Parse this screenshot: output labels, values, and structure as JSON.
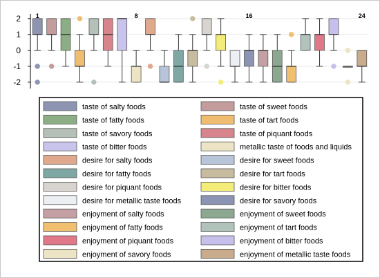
{
  "chart_data": {
    "type": "boxplot",
    "ylim": [
      -2.4,
      2.3
    ],
    "yticks": [
      2,
      1,
      0,
      -1,
      -2
    ],
    "grid": true,
    "legend_placement": "bottom",
    "annotations": [
      {
        "text": "1",
        "x": 1
      },
      {
        "text": "8",
        "x": 8
      },
      {
        "text": "16",
        "x": 16
      },
      {
        "text": "24",
        "x": 24
      }
    ],
    "series": [
      {
        "name": "taste of salty foods",
        "color": "#8d95b3",
        "q1": 1,
        "median": 1,
        "q3": 2,
        "whisker_low": 0,
        "whisker_high": 2,
        "outliers": [
          -1,
          -2
        ]
      },
      {
        "name": "taste of sweet foods",
        "color": "#c49c9c",
        "q1": 1,
        "median": 1,
        "q3": 2,
        "whisker_low": 0,
        "whisker_high": 2,
        "outliers": [
          -1
        ]
      },
      {
        "name": "taste of fatty foods",
        "color": "#8cae84",
        "q1": 0,
        "median": 1,
        "q3": 2,
        "whisker_low": -1,
        "whisker_high": 2,
        "outliers": []
      },
      {
        "name": "taste of tart foods",
        "color": "#f0bc70",
        "q1": -1,
        "median": -1,
        "q3": 0,
        "whisker_low": -2,
        "whisker_high": 1,
        "outliers": [
          2
        ]
      },
      {
        "name": "taste of savory foods",
        "color": "#b4c0b8",
        "q1": 1,
        "median": 1,
        "q3": 2,
        "whisker_low": 0,
        "whisker_high": 2,
        "outliers": [
          -2
        ]
      },
      {
        "name": "taste of piquant foods",
        "color": "#d8848c",
        "q1": 0,
        "median": 1,
        "q3": 2,
        "whisker_low": -1,
        "whisker_high": 2,
        "outliers": []
      },
      {
        "name": "taste of bitter foods",
        "color": "#c8c4ec",
        "q1": 0,
        "median": 2,
        "q3": 2,
        "whisker_low": -2,
        "whisker_high": 2,
        "outliers": []
      },
      {
        "name": "metallic taste of foods and liquids",
        "color": "#ece4c4",
        "q1": -2,
        "median": -1,
        "q3": -1,
        "whisker_low": -2,
        "whisker_high": 0,
        "outliers": []
      },
      {
        "name": "desire for salty foods",
        "color": "#e0a88c",
        "q1": 1,
        "median": 1,
        "q3": 2,
        "whisker_low": 0,
        "whisker_high": 2,
        "outliers": [
          -1
        ]
      },
      {
        "name": "desire for sweet foods",
        "color": "#b8c4d8",
        "q1": -2,
        "median": -2,
        "q3": -1,
        "whisker_low": -2,
        "whisker_high": 0,
        "outliers": []
      },
      {
        "name": "desire for fatty foods",
        "color": "#7fa8a4",
        "q1": -2,
        "median": -1,
        "q3": 0,
        "whisker_low": -2,
        "whisker_high": 1,
        "outliers": []
      },
      {
        "name": "desire for tart foods",
        "color": "#c8bca0",
        "q1": -1,
        "median": 0,
        "q3": 0,
        "whisker_low": -2,
        "whisker_high": 1,
        "outliers": [
          2
        ]
      },
      {
        "name": "desire for piquant foods",
        "color": "#d8d4d0",
        "q1": 1,
        "median": 1,
        "q3": 2,
        "whisker_low": 0,
        "whisker_high": 2,
        "outliers": [
          -1
        ]
      },
      {
        "name": "desire for bitter foods",
        "color": "#f4ec78",
        "q1": 0,
        "median": 1,
        "q3": 1,
        "whisker_low": -1,
        "whisker_high": 2,
        "outliers": [
          -2
        ]
      },
      {
        "name": "desire for metallic taste foods",
        "color": "#ecf0f4",
        "q1": -1,
        "median": -1,
        "q3": 0,
        "whisker_low": -2,
        "whisker_high": 0,
        "outliers": []
      },
      {
        "name": "desire for savory foods",
        "color": "#8c94b4",
        "q1": -1,
        "median": 0,
        "q3": 0,
        "whisker_low": -2,
        "whisker_high": 1,
        "outliers": []
      },
      {
        "name": "enjoyment of salty foods",
        "color": "#c4a0a4",
        "q1": -1,
        "median": 0,
        "q3": 0,
        "whisker_low": -2,
        "whisker_high": 1,
        "outliers": []
      },
      {
        "name": "enjoyment of sweet foods",
        "color": "#8ca890",
        "q1": -2,
        "median": -1,
        "q3": 0,
        "whisker_low": -2,
        "whisker_high": 1,
        "outliers": []
      },
      {
        "name": "enjoyment of fatty foods",
        "color": "#f0c070",
        "q1": -2,
        "median": -1,
        "q3": -1,
        "whisker_low": -2,
        "whisker_high": 0,
        "outliers": [
          1
        ]
      },
      {
        "name": "enjoyment of tart foods",
        "color": "#b0c4bc",
        "q1": 0,
        "median": 1,
        "q3": 1,
        "whisker_low": 0,
        "whisker_high": 2,
        "outliers": []
      },
      {
        "name": "enjoyment of piquant foods",
        "color": "#e07888",
        "q1": 0,
        "median": 1,
        "q3": 1,
        "whisker_low": -1,
        "whisker_high": 2,
        "outliers": []
      },
      {
        "name": "enjoyment of bitter foods",
        "color": "#c8c0ec",
        "q1": 1,
        "median": 1,
        "q3": 2,
        "whisker_low": 0,
        "whisker_high": 2,
        "outliers": [
          -1
        ]
      },
      {
        "name": "enjoyment of savory foods",
        "color": "#ece4c4",
        "q1": -1,
        "median": -1,
        "q3": -1,
        "whisker_low": -1,
        "whisker_high": -1,
        "outliers": [
          0,
          -2
        ]
      },
      {
        "name": "enjoyment of metallic taste foods",
        "color": "#c8ac8c",
        "q1": -1,
        "median": -1,
        "q3": 0,
        "whisker_low": -2,
        "whisker_high": 0,
        "outliers": []
      }
    ]
  }
}
